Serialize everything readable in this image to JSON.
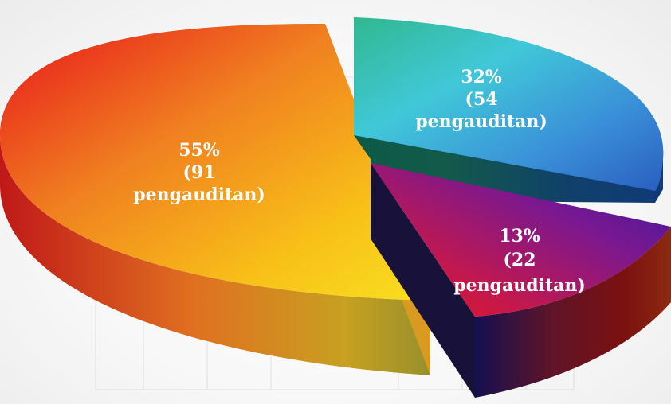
{
  "chart_data": {
    "type": "pie",
    "style": "3d-exploded",
    "slices": [
      {
        "percent": 55,
        "count": 91,
        "label_lines": [
          "55%",
          "(91",
          "pengauditan)"
        ],
        "top_colors": [
          "#e8141c",
          "#f08020",
          "#f8c018",
          "#f8e020"
        ],
        "side_colors": [
          "#c01818",
          "#e07020",
          "#c8a020",
          "#98902c"
        ]
      },
      {
        "percent": 32,
        "count": 54,
        "label_lines": [
          "32%",
          "(54",
          "pengauditan)"
        ],
        "top_colors": [
          "#30b890",
          "#40c8d8",
          "#3a90d8",
          "#2a5ec0"
        ],
        "side_colors": [
          "#0c5a46",
          "#135a4a",
          "#10406a",
          "#103a78"
        ]
      },
      {
        "percent": 13,
        "count": 22,
        "label_lines": [
          "13%",
          "(22",
          "pengauditan)"
        ],
        "top_colors": [
          "#3018a0",
          "#7a1890",
          "#c01850",
          "#e8181c"
        ],
        "side_colors": [
          "#141050",
          "#601428",
          "#7a1010",
          "#8c2a10"
        ]
      }
    ]
  }
}
